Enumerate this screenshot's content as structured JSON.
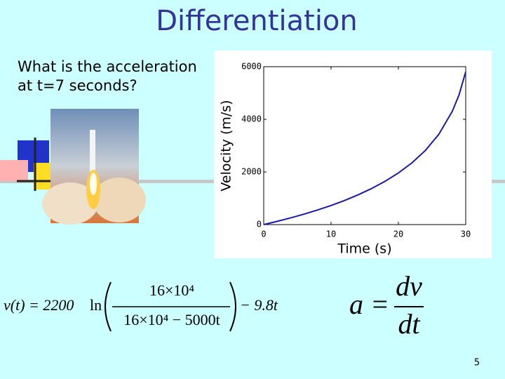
{
  "title": "Differentiation",
  "question": "What is the acceleration at t=7 seconds?",
  "velocity_equation": {
    "lhs": "v(t) = 2200",
    "log": "ln",
    "numerator": "16×10⁴",
    "denominator": "16×10⁴ − 5000t",
    "tail": "− 9.8t"
  },
  "acceleration_equation": {
    "lhs": "a =",
    "numerator": "dv",
    "denominator": "dt"
  },
  "page_number": "5",
  "chart_data": {
    "type": "line",
    "xlabel": "Time (s)",
    "ylabel": "Velocity (m/s)",
    "x": [
      0,
      2,
      4,
      6,
      8,
      10,
      12,
      14,
      16,
      18,
      20,
      22,
      24,
      26,
      28,
      29,
      30
    ],
    "values": [
      0,
      122.4,
      254.6,
      398.0,
      554.5,
      726.3,
      916.4,
      1128.6,
      1368.1,
      1642.3,
      1961.8,
      2343.3,
      2814.6,
      3428.0,
      4300.4,
      4923.5,
      5805.7
    ],
    "color": "#1a1aa6",
    "xlim": [
      0,
      30
    ],
    "ylim": [
      0,
      6000
    ],
    "xticks": [
      0,
      10,
      20,
      30
    ],
    "yticks": [
      0,
      2000,
      4000,
      6000
    ]
  }
}
